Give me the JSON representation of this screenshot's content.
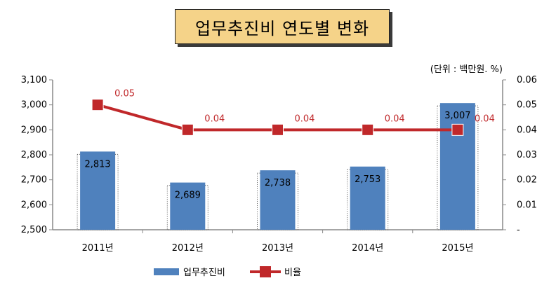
{
  "chart_data": {
    "type": "bar",
    "title": "업무추진비 연도별 변화",
    "unit_note": "(단위 : 백만원. %)",
    "categories": [
      "2011년",
      "2012년",
      "2013년",
      "2014년",
      "2015년"
    ],
    "series": [
      {
        "name": "업무추진비",
        "type": "bar",
        "axis": "left",
        "values": [
          2813,
          2689,
          2738,
          2753,
          3007
        ],
        "labels": [
          "2,813",
          "2,689",
          "2,738",
          "2,753",
          "3,007"
        ],
        "color": "#4f81bd"
      },
      {
        "name": "비율",
        "type": "line",
        "axis": "right",
        "values": [
          0.05,
          0.04,
          0.04,
          0.04,
          0.04
        ],
        "labels": [
          "0.05",
          "0.04",
          "0.04",
          "0.04",
          "0.04"
        ],
        "color": "#c0282a"
      }
    ],
    "y_left": {
      "min": 2500,
      "max": 3100,
      "step": 100,
      "tick_labels": [
        "2,500",
        "2,600",
        "2,700",
        "2,800",
        "2,900",
        "3,000",
        "3,100"
      ]
    },
    "y_right": {
      "min": 0,
      "max": 0.06,
      "step": 0.01,
      "tick_labels": [
        "-",
        "0.01",
        "0.02",
        "0.03",
        "0.04",
        "0.05",
        "0.06"
      ]
    },
    "grid": false,
    "legend": "bottom"
  }
}
